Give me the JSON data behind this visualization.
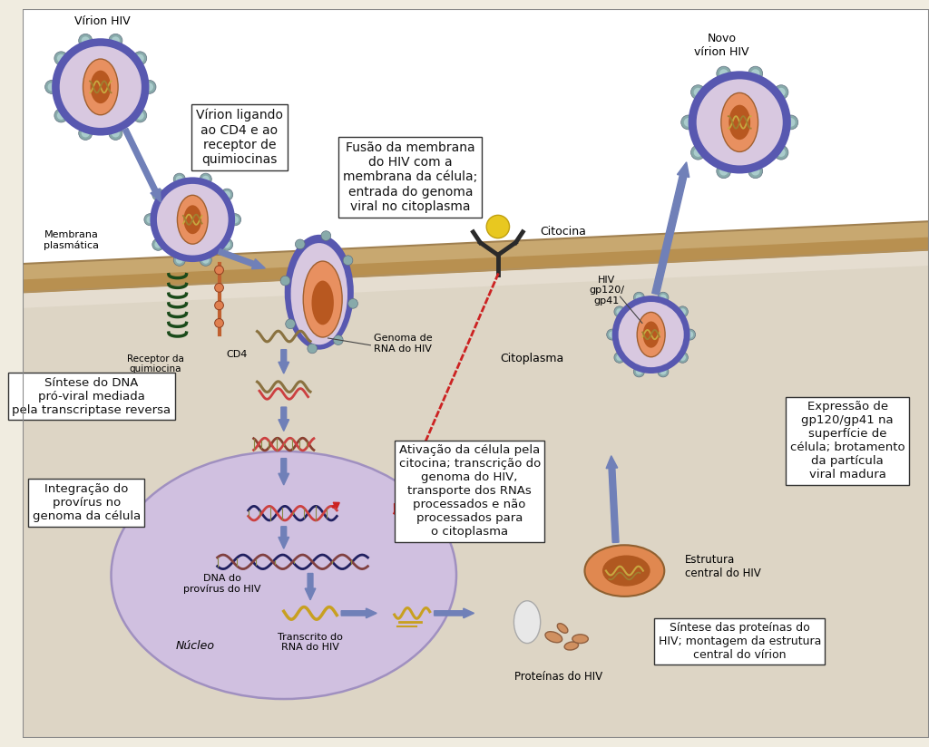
{
  "bg_color": "#f0ece0",
  "cell_bg": "#e5ddd0",
  "cytoplasm_bg": "#ddd5c5",
  "nucleus_color": "#d0c0e0",
  "nucleus_edge": "#a090c0",
  "virion_ring": "#5858b0",
  "virion_pink": "#d8c8e0",
  "virion_orange": "#e89060",
  "virion_brown": "#b85820",
  "spike_color": "#88aaaa",
  "spike_inner": "#aacccc",
  "membrane_color1": "#c8a870",
  "membrane_color2": "#b89050",
  "arrow_blue": "#7080b8",
  "arrow_red": "#cc2222",
  "box_bg": "#ffffff",
  "box_edge": "#333333",
  "text_color": "#111111",
  "rna_color": "#8a7240",
  "dna_color1": "#8a4030",
  "dna_color2": "#cc4040",
  "dna_dark1": "#202060",
  "dna_highlight": "#cc8030",
  "receptor_color": "#1a4a1a",
  "cytokine_ball": "#e8c820",
  "cytokine_stem": "#2a2a2a",
  "protein_color": "#d09060",
  "protein_edge": "#906040",
  "capsid_color": "#e08850",
  "capsid_dark": "#b05820",
  "white_capsid": "#e8e8e8",
  "labels": {
    "virion_hiv": "Vírion HIV",
    "virion_binding": "Vírion ligando\nao CD4 e ao\nreceptor de\nquimiocinas",
    "fusion": "Fusão da membrana\ndo HIV com a\nmembrana da célula;\nentrada do genoma\nviral no citoplasma",
    "membrane": "Membrana\nplasmática",
    "chemokine_receptor": "Receptor da\nquimiocina",
    "cd4": "CD4",
    "rna_genome": "Genoma de\nRNA do HIV",
    "cytokine": "Citocina",
    "cytoplasm": "Citoplasma",
    "synthesis": "Síntese do DNA\npró-viral mediada\npela transcriptase reversa",
    "integration": "Integração do\nprovírus no\ngenoma da célula",
    "activation": "Ativação da célula pela\ncitocina; transcrição do\ngenoma do HIV,\ntransporte dos RNAs\nprocessados e não\nprocessados para\no citoplasma",
    "nucleus": "Núcleo",
    "proviral_dna": "DNA do\nprovírus do HIV",
    "transcript": "Transcrito do\nRNA do HIV",
    "hiv_proteins": "Proteínas do HIV",
    "new_virion": "Novo\nvírion HIV",
    "hiv_gp": "HIV\ngp120/\ngp41",
    "expression": "Expressão de\ngp120/gp41 na\nsuperfície de\ncélula; brotamento\nda partícula\nviral madura",
    "hiv_core": "Estrutura\ncentral do HIV",
    "synthesis_proteins": "Síntese das proteínas do\nHIV; montagem da estrutura\ncentral do vírion"
  }
}
